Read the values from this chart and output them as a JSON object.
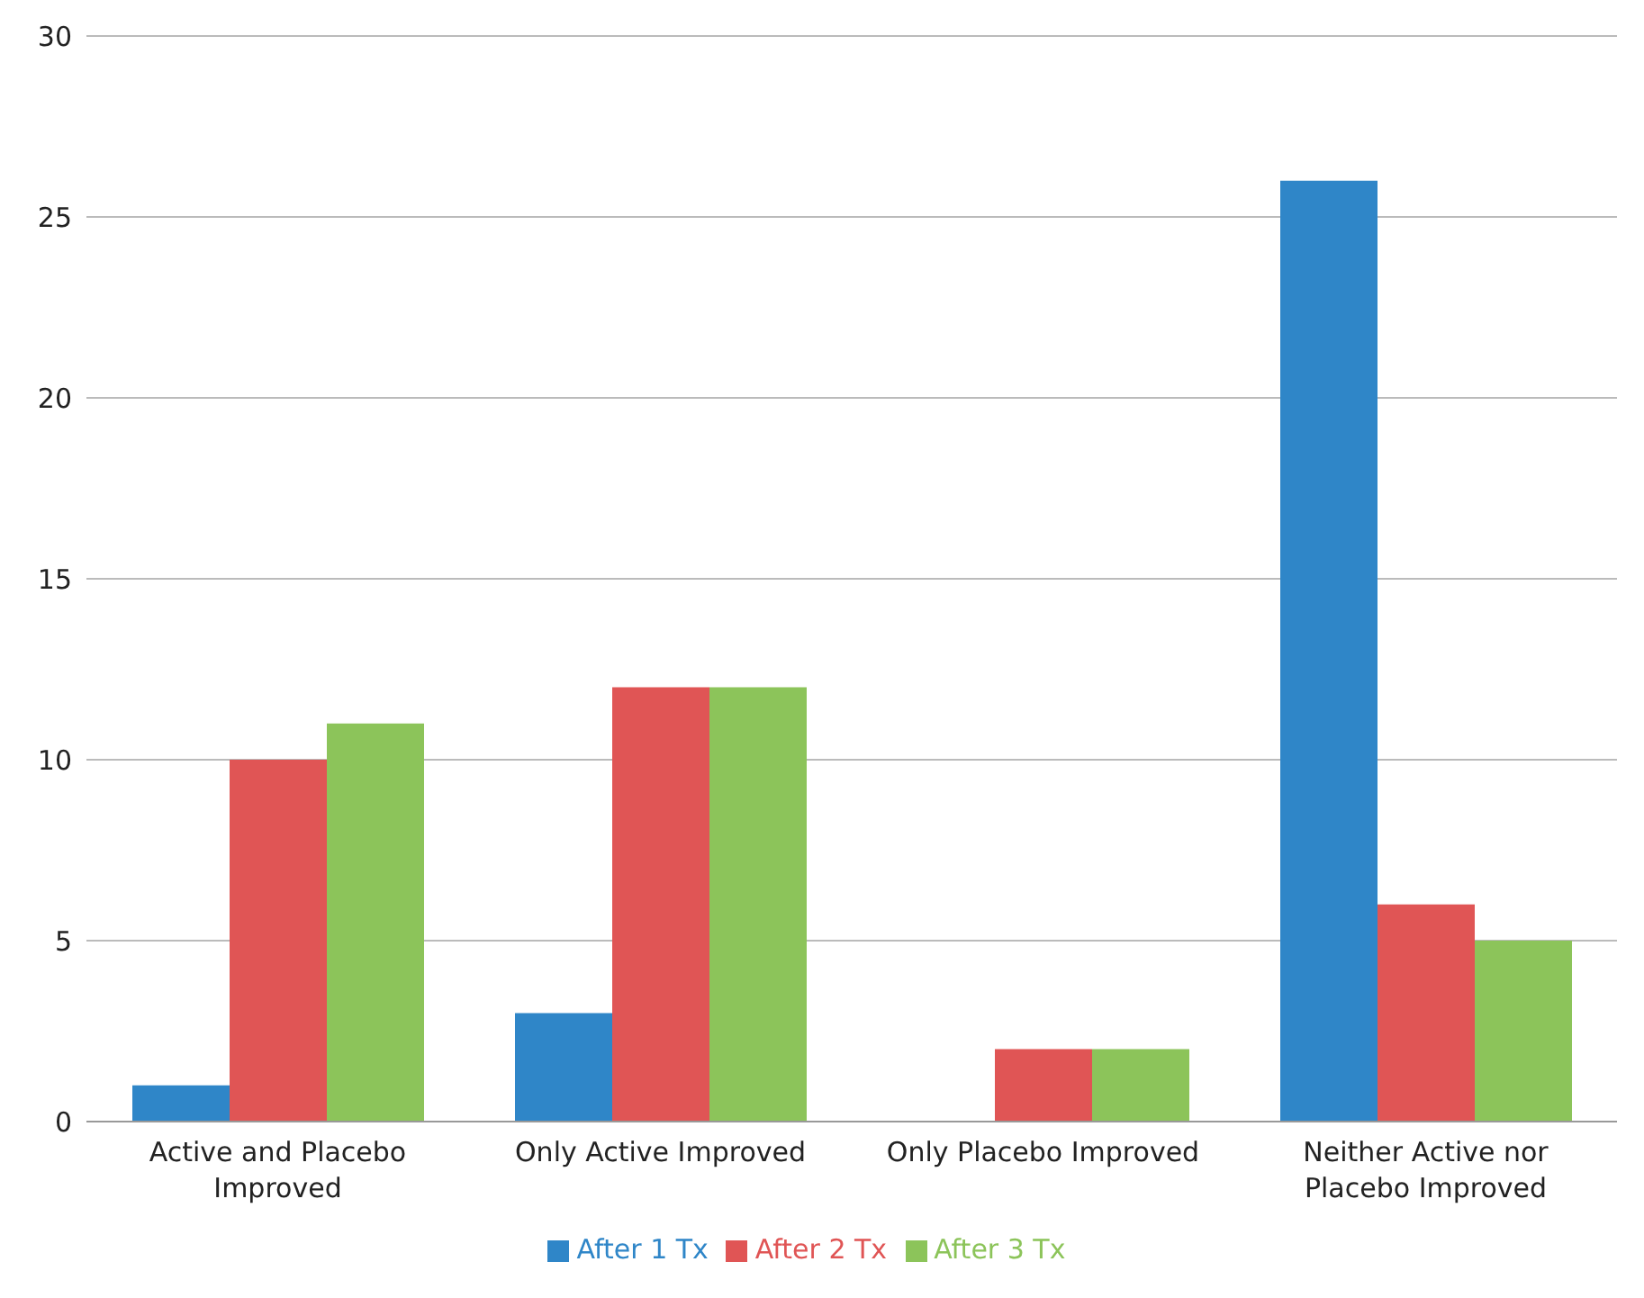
{
  "chart_data": {
    "type": "bar",
    "categories": [
      "Active and Placebo Improved",
      "Only Active Improved",
      "Only Placebo Improved",
      "Neither Active nor Placebo Improved"
    ],
    "series": [
      {
        "name": "After 1 Tx",
        "color": "#2f86c8",
        "values": [
          1,
          3,
          0,
          26
        ]
      },
      {
        "name": "After 2 Tx",
        "color": "#e05555",
        "values": [
          10,
          12,
          2,
          6
        ]
      },
      {
        "name": "After 3 Tx",
        "color": "#8cc45a",
        "values": [
          11,
          12,
          2,
          5
        ]
      }
    ],
    "ylim": [
      0,
      30
    ],
    "yticks": [
      0,
      5,
      10,
      15,
      20,
      25,
      30
    ],
    "grid": "y",
    "legend": "bottom"
  }
}
